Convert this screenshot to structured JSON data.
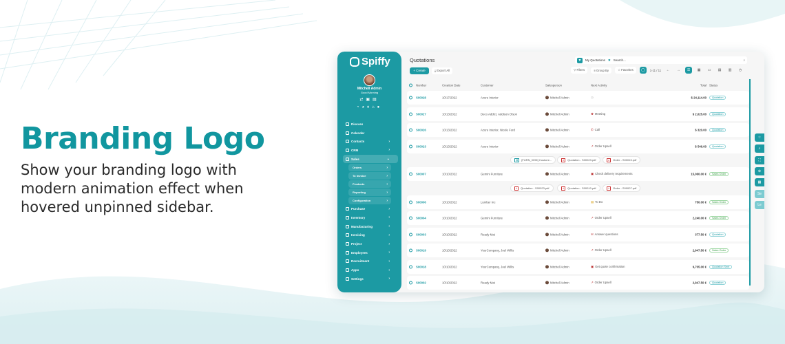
{
  "hero": {
    "title": "Branding Logo",
    "text": "Show your branding logo with modern animation effect when hovered unpinned sidebar."
  },
  "colors": {
    "brand": "#1c9aa3",
    "title": "#11969f"
  },
  "sidebar": {
    "logo": "Spiffy",
    "user": "Mitchell Admin",
    "greeting": "Good Morning",
    "items": [
      {
        "label": "Discuss",
        "chevron": false
      },
      {
        "label": "Calendar",
        "chevron": false
      },
      {
        "label": "Contacts",
        "chevron": true
      },
      {
        "label": "CRM",
        "chevron": true
      },
      {
        "label": "Sales",
        "chevron": true,
        "active": true
      },
      {
        "label": "Orders",
        "sub": true
      },
      {
        "label": "To Invoice",
        "sub": true
      },
      {
        "label": "Products",
        "sub": true
      },
      {
        "label": "Reporting",
        "sub": true
      },
      {
        "label": "Configuration",
        "sub": true
      },
      {
        "label": "Purchase",
        "chevron": true
      },
      {
        "label": "Inventory",
        "chevron": true
      },
      {
        "label": "Manufacturing",
        "chevron": true
      },
      {
        "label": "Invoicing",
        "chevron": true
      },
      {
        "label": "Project",
        "chevron": true
      },
      {
        "label": "Employees",
        "chevron": true
      },
      {
        "label": "Recruitment",
        "chevron": true
      },
      {
        "label": "Apps",
        "chevron": true
      },
      {
        "label": "Settings",
        "chevron": true
      }
    ]
  },
  "header": {
    "title": "Quotations",
    "create": "+ Create",
    "export": "Export All",
    "facet": "My Quotations",
    "search_placeholder": "Search...",
    "filters": "Filters",
    "group_by": "Group By",
    "favorites": "Favorites",
    "pager": "1-11 / 11"
  },
  "table": {
    "columns": [
      "Number",
      "Creation Date",
      "Customer",
      "Salesperson",
      "Next Activity",
      "Total",
      "Status"
    ],
    "rows": [
      {
        "type": "row",
        "number": "S00028",
        "date": "10/17/2022",
        "customer": "Azure Interior",
        "salesperson": "Mitchell Admin",
        "activity": "",
        "activity_icon": "clock-icon",
        "total": "$ 24,114.00",
        "status": "Quotation"
      },
      {
        "type": "row",
        "number": "S00027",
        "date": "10/13/2022",
        "customer": "Deco Addict, Addison Olson",
        "salesperson": "Mitchell Admin",
        "activity": "Meeting",
        "activity_icon": "users-icon",
        "total": "$ 2,025.00",
        "status": "Quotation"
      },
      {
        "type": "row",
        "number": "S00026",
        "date": "10/13/2022",
        "customer": "Azure Interior, Nicole Ford",
        "salesperson": "Mitchell Admin",
        "activity": "Call",
        "activity_icon": "phone-icon",
        "total": "$ 320.00",
        "status": "Quotation"
      },
      {
        "type": "row",
        "number": "S00023",
        "date": "10/13/2022",
        "customer": "Azure Interior",
        "salesperson": "Mitchell Admin",
        "activity": "Order Upsell",
        "activity_icon": "chart-icon",
        "total": "$ 546.00",
        "status": "Quotation"
      },
      {
        "type": "att",
        "files": [
          "[FURN_0096] Customi...",
          "Quotation - S00023.pdf",
          "Order - S00015.pdf"
        ]
      },
      {
        "type": "row",
        "number": "S00007",
        "date": "10/10/2022",
        "customer": "Gemini Furniture",
        "salesperson": "Mitchell Admin",
        "activity": "Check delivery requirements",
        "activity_icon": "calendar-icon",
        "total": "15,060.00 €",
        "status": "Sales Order"
      },
      {
        "type": "att",
        "files": [
          "Quotation - S00023.pdf",
          "Quotation - S00010.pdf",
          "Order - S00007.pdf"
        ]
      },
      {
        "type": "row",
        "number": "S00006",
        "date": "10/10/2022",
        "customer": "Lumber Inc",
        "salesperson": "Mitchell Admin",
        "activity": "To Do",
        "activity_icon": "todo-icon",
        "total": "750.00 €",
        "status": "Sales Order"
      },
      {
        "type": "row",
        "number": "S00004",
        "date": "10/10/2022",
        "customer": "Gemini Furniture",
        "salesperson": "Mitchell Admin",
        "activity": "Order Upsell",
        "activity_icon": "chart-icon",
        "total": "2,240.00 €",
        "status": "Sales Order"
      },
      {
        "type": "row",
        "number": "S00003",
        "date": "10/10/2022",
        "customer": "Ready Mat",
        "salesperson": "Mitchell Admin",
        "activity": "Answer questions",
        "activity_icon": "mail-icon",
        "total": "377.50 €",
        "status": "Quotation"
      },
      {
        "type": "row",
        "number": "S00019",
        "date": "10/10/2022",
        "customer": "YourCompany, Joel Willis",
        "salesperson": "Mitchell Admin",
        "activity": "Order Upsell",
        "activity_icon": "chart-icon",
        "total": "2,947.50 €",
        "status": "Sales Order"
      },
      {
        "type": "row",
        "number": "S00018",
        "date": "10/10/2022",
        "customer": "YourCompany, Joel Willis",
        "salesperson": "Mitchell Admin",
        "activity": "Get quote confirmation",
        "activity_icon": "calendar-icon",
        "total": "9,705.00 €",
        "status": "Quotation Sent"
      },
      {
        "type": "row",
        "number": "S00002",
        "date": "10/10/2022",
        "customer": "Ready Mat",
        "salesperson": "Mitchell Admin",
        "activity": "Order Upsell",
        "activity_icon": "chart-icon",
        "total": "2,947.50 €",
        "status": "Quotation"
      }
    ]
  },
  "floating": [
    {
      "icon": "star-icon"
    },
    {
      "icon": "search-icon"
    },
    {
      "icon": "expand-icon"
    },
    {
      "icon": "zoom-icon"
    },
    {
      "icon": "grid-icon"
    },
    {
      "label": "Se"
    },
    {
      "label": "Le"
    }
  ]
}
